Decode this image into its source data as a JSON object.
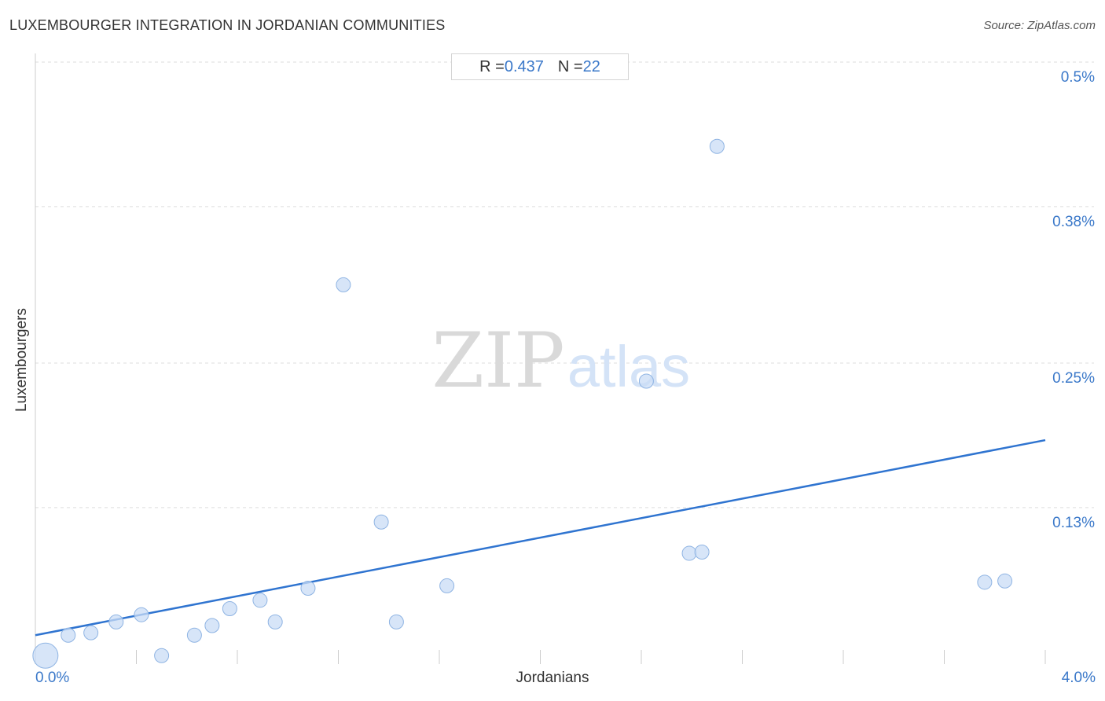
{
  "title": "LUXEMBOURGER INTEGRATION IN JORDANIAN COMMUNITIES",
  "source": "Source: ZipAtlas.com",
  "stats": {
    "r_label": "R = ",
    "r_value": "0.437",
    "n_label": "N = ",
    "n_value": "22"
  },
  "watermark": {
    "zip": "ZIP",
    "atlas": "atlas"
  },
  "chart_data": {
    "type": "scatter",
    "xlabel": "Jordanians",
    "ylabel": "Luxembourgers",
    "xlim": [
      0,
      4.0
    ],
    "ylim": [
      0,
      0.5
    ],
    "x_tick_labels": [
      "0.0%",
      "4.0%"
    ],
    "y_ticks": [
      {
        "value": 0.5,
        "label": "0.5%"
      },
      {
        "value": 0.38,
        "label": "0.38%"
      },
      {
        "value": 0.25,
        "label": "0.25%"
      },
      {
        "value": 0.13,
        "label": "0.13%"
      }
    ],
    "grid": "horizontal dashed",
    "colors": {
      "point_fill": "#c9dcf5",
      "point_stroke": "#8fb4e3",
      "trendline": "#2f74d0",
      "tick_label": "#3a78c9"
    },
    "trendline": {
      "x": [
        0,
        4.0
      ],
      "y": [
        0.024,
        0.186
      ]
    },
    "points": [
      {
        "x": 0.04,
        "y": 0.007,
        "size": "large"
      },
      {
        "x": 0.13,
        "y": 0.024
      },
      {
        "x": 0.22,
        "y": 0.026
      },
      {
        "x": 0.32,
        "y": 0.035
      },
      {
        "x": 0.42,
        "y": 0.041
      },
      {
        "x": 0.5,
        "y": 0.007
      },
      {
        "x": 0.63,
        "y": 0.024
      },
      {
        "x": 0.7,
        "y": 0.032
      },
      {
        "x": 0.77,
        "y": 0.046
      },
      {
        "x": 0.89,
        "y": 0.053
      },
      {
        "x": 0.95,
        "y": 0.035
      },
      {
        "x": 1.08,
        "y": 0.063
      },
      {
        "x": 1.22,
        "y": 0.315
      },
      {
        "x": 1.37,
        "y": 0.118
      },
      {
        "x": 1.43,
        "y": 0.035
      },
      {
        "x": 1.63,
        "y": 0.065
      },
      {
        "x": 2.42,
        "y": 0.235
      },
      {
        "x": 2.59,
        "y": 0.092
      },
      {
        "x": 2.64,
        "y": 0.093
      },
      {
        "x": 2.7,
        "y": 0.43
      },
      {
        "x": 3.76,
        "y": 0.068
      },
      {
        "x": 3.84,
        "y": 0.069
      }
    ]
  }
}
